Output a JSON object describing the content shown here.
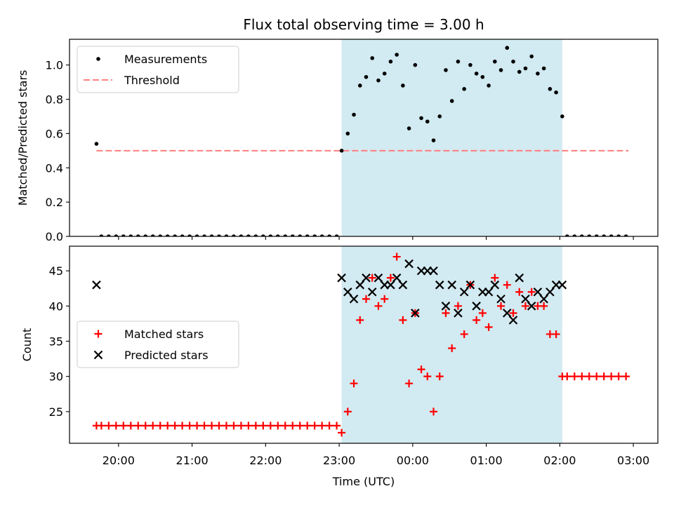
{
  "figure": {
    "title": "Flux total observing time = 3.00 h",
    "xlabel": "Time (UTC)"
  },
  "colors": {
    "span": "#add8e6",
    "threshold": "#ff7f7f",
    "matched": "#ff0000",
    "predicted": "#000000"
  },
  "chart_data": [
    {
      "type": "scatter",
      "ylabel": "Matched/Predicted stars",
      "ylim": [
        0,
        1.15
      ],
      "yticks": [
        0.0,
        0.2,
        0.4,
        0.6,
        0.8,
        1.0
      ],
      "ytick_labels": [
        "0.0",
        "0.2",
        "0.4",
        "0.6",
        "0.8",
        "1.0"
      ],
      "xticks": [
        "20:00",
        "21:00",
        "22:00",
        "23:00",
        "00:00",
        "01:00",
        "02:00",
        "03:00"
      ],
      "xtick_labels_visible": false,
      "legend": {
        "placement": "upper-left",
        "entries": [
          {
            "label": "Measurements",
            "marker": "dot"
          },
          {
            "label": "Threshold",
            "marker": "dashed-line"
          }
        ]
      },
      "shaded_span": {
        "start": "23:02",
        "end": "02:02"
      },
      "threshold": {
        "value": 0.5,
        "start": "19:42",
        "end": "02:56"
      },
      "series": [
        {
          "name": "Measurements",
          "points": [
            [
              "19:42",
              0.54
            ],
            [
              "19:46",
              0.0
            ],
            [
              "19:52",
              0.0
            ],
            [
              "19:58",
              0.0
            ],
            [
              "20:04",
              0.0
            ],
            [
              "20:10",
              0.0
            ],
            [
              "20:16",
              0.0
            ],
            [
              "20:22",
              0.0
            ],
            [
              "20:28",
              0.0
            ],
            [
              "20:34",
              0.0
            ],
            [
              "20:40",
              0.0
            ],
            [
              "20:46",
              0.0
            ],
            [
              "20:52",
              0.0
            ],
            [
              "20:58",
              0.0
            ],
            [
              "21:04",
              0.0
            ],
            [
              "21:10",
              0.0
            ],
            [
              "21:16",
              0.0
            ],
            [
              "21:22",
              0.0
            ],
            [
              "21:28",
              0.0
            ],
            [
              "21:34",
              0.0
            ],
            [
              "21:40",
              0.0
            ],
            [
              "21:46",
              0.0
            ],
            [
              "21:52",
              0.0
            ],
            [
              "21:58",
              0.0
            ],
            [
              "22:04",
              0.0
            ],
            [
              "22:10",
              0.0
            ],
            [
              "22:16",
              0.0
            ],
            [
              "22:22",
              0.0
            ],
            [
              "22:28",
              0.0
            ],
            [
              "22:34",
              0.0
            ],
            [
              "22:40",
              0.0
            ],
            [
              "22:46",
              0.0
            ],
            [
              "22:52",
              0.0
            ],
            [
              "22:58",
              0.0
            ],
            [
              "23:02",
              0.5
            ],
            [
              "23:07",
              0.6
            ],
            [
              "23:12",
              0.71
            ],
            [
              "23:17",
              0.88
            ],
            [
              "23:22",
              0.93
            ],
            [
              "23:27",
              1.04
            ],
            [
              "23:32",
              0.91
            ],
            [
              "23:37",
              0.95
            ],
            [
              "23:42",
              1.02
            ],
            [
              "23:47",
              1.06
            ],
            [
              "23:52",
              0.88
            ],
            [
              "23:57",
              0.63
            ],
            [
              "00:02",
              1.0
            ],
            [
              "00:07",
              0.69
            ],
            [
              "00:12",
              0.67
            ],
            [
              "00:17",
              0.56
            ],
            [
              "00:22",
              0.7
            ],
            [
              "00:27",
              0.97
            ],
            [
              "00:32",
              0.79
            ],
            [
              "00:37",
              1.02
            ],
            [
              "00:42",
              0.86
            ],
            [
              "00:47",
              1.0
            ],
            [
              "00:52",
              0.95
            ],
            [
              "00:57",
              0.93
            ],
            [
              "01:02",
              0.88
            ],
            [
              "01:07",
              1.02
            ],
            [
              "01:12",
              0.97
            ],
            [
              "01:17",
              1.1
            ],
            [
              "01:22",
              1.02
            ],
            [
              "01:27",
              0.96
            ],
            [
              "01:32",
              0.98
            ],
            [
              "01:37",
              1.05
            ],
            [
              "01:42",
              0.95
            ],
            [
              "01:47",
              0.98
            ],
            [
              "01:52",
              0.86
            ],
            [
              "01:57",
              0.84
            ],
            [
              "02:02",
              0.7
            ],
            [
              "02:06",
              0.0
            ],
            [
              "02:12",
              0.0
            ],
            [
              "02:18",
              0.0
            ],
            [
              "02:24",
              0.0
            ],
            [
              "02:30",
              0.0
            ],
            [
              "02:36",
              0.0
            ],
            [
              "02:42",
              0.0
            ],
            [
              "02:48",
              0.0
            ],
            [
              "02:54",
              0.0
            ]
          ]
        }
      ]
    },
    {
      "type": "scatter",
      "ylabel": "Count",
      "ylim": [
        20.5,
        48.5
      ],
      "yticks": [
        25,
        30,
        35,
        40,
        45
      ],
      "ytick_labels": [
        "25",
        "30",
        "35",
        "40",
        "45"
      ],
      "xticks": [
        "20:00",
        "21:00",
        "22:00",
        "23:00",
        "00:00",
        "01:00",
        "02:00",
        "03:00"
      ],
      "xtick_labels": [
        "20:00",
        "21:00",
        "22:00",
        "23:00",
        "00:00",
        "01:00",
        "02:00",
        "03:00"
      ],
      "legend": {
        "placement": "center-left",
        "entries": [
          {
            "label": "Matched stars",
            "marker": "plus"
          },
          {
            "label": "Predicted stars",
            "marker": "x"
          }
        ]
      },
      "shaded_span": {
        "start": "23:02",
        "end": "02:02"
      },
      "series": [
        {
          "name": "Matched stars",
          "points": [
            [
              "19:42",
              23
            ],
            [
              "19:46",
              23
            ],
            [
              "19:52",
              23
            ],
            [
              "19:58",
              23
            ],
            [
              "20:04",
              23
            ],
            [
              "20:10",
              23
            ],
            [
              "20:16",
              23
            ],
            [
              "20:22",
              23
            ],
            [
              "20:28",
              23
            ],
            [
              "20:34",
              23
            ],
            [
              "20:40",
              23
            ],
            [
              "20:46",
              23
            ],
            [
              "20:52",
              23
            ],
            [
              "20:58",
              23
            ],
            [
              "21:04",
              23
            ],
            [
              "21:10",
              23
            ],
            [
              "21:16",
              23
            ],
            [
              "21:22",
              23
            ],
            [
              "21:28",
              23
            ],
            [
              "21:34",
              23
            ],
            [
              "21:40",
              23
            ],
            [
              "21:46",
              23
            ],
            [
              "21:52",
              23
            ],
            [
              "21:58",
              23
            ],
            [
              "22:04",
              23
            ],
            [
              "22:10",
              23
            ],
            [
              "22:16",
              23
            ],
            [
              "22:22",
              23
            ],
            [
              "22:28",
              23
            ],
            [
              "22:34",
              23
            ],
            [
              "22:40",
              23
            ],
            [
              "22:46",
              23
            ],
            [
              "22:52",
              23
            ],
            [
              "22:58",
              23
            ],
            [
              "23:02",
              22
            ],
            [
              "23:07",
              25
            ],
            [
              "23:12",
              29
            ],
            [
              "23:17",
              38
            ],
            [
              "23:22",
              41
            ],
            [
              "23:27",
              44
            ],
            [
              "23:32",
              40
            ],
            [
              "23:37",
              41
            ],
            [
              "23:42",
              44
            ],
            [
              "23:47",
              47
            ],
            [
              "23:52",
              38
            ],
            [
              "23:57",
              29
            ],
            [
              "00:02",
              39
            ],
            [
              "00:07",
              31
            ],
            [
              "00:12",
              30
            ],
            [
              "00:17",
              25
            ],
            [
              "00:22",
              30
            ],
            [
              "00:27",
              39
            ],
            [
              "00:32",
              34
            ],
            [
              "00:37",
              40
            ],
            [
              "00:42",
              36
            ],
            [
              "00:47",
              43
            ],
            [
              "00:52",
              38
            ],
            [
              "00:57",
              39
            ],
            [
              "01:02",
              37
            ],
            [
              "01:07",
              44
            ],
            [
              "01:12",
              40
            ],
            [
              "01:17",
              43
            ],
            [
              "01:22",
              39
            ],
            [
              "01:27",
              42
            ],
            [
              "01:32",
              40
            ],
            [
              "01:37",
              42
            ],
            [
              "01:42",
              40
            ],
            [
              "01:47",
              40
            ],
            [
              "01:52",
              36
            ],
            [
              "01:57",
              36
            ],
            [
              "02:02",
              30
            ],
            [
              "02:06",
              30
            ],
            [
              "02:12",
              30
            ],
            [
              "02:18",
              30
            ],
            [
              "02:24",
              30
            ],
            [
              "02:30",
              30
            ],
            [
              "02:36",
              30
            ],
            [
              "02:42",
              30
            ],
            [
              "02:48",
              30
            ],
            [
              "02:54",
              30
            ]
          ]
        },
        {
          "name": "Predicted stars",
          "points": [
            [
              "19:42",
              43
            ],
            [
              "23:02",
              44
            ],
            [
              "23:07",
              42
            ],
            [
              "23:12",
              41
            ],
            [
              "23:17",
              43
            ],
            [
              "23:22",
              44
            ],
            [
              "23:27",
              42
            ],
            [
              "23:32",
              44
            ],
            [
              "23:37",
              43
            ],
            [
              "23:42",
              43
            ],
            [
              "23:47",
              44
            ],
            [
              "23:52",
              43
            ],
            [
              "23:57",
              46
            ],
            [
              "00:02",
              39
            ],
            [
              "00:07",
              45
            ],
            [
              "00:12",
              45
            ],
            [
              "00:17",
              45
            ],
            [
              "00:22",
              43
            ],
            [
              "00:27",
              40
            ],
            [
              "00:32",
              43
            ],
            [
              "00:37",
              39
            ],
            [
              "00:42",
              42
            ],
            [
              "00:47",
              43
            ],
            [
              "00:52",
              40
            ],
            [
              "00:57",
              42
            ],
            [
              "01:02",
              42
            ],
            [
              "01:07",
              43
            ],
            [
              "01:12",
              41
            ],
            [
              "01:17",
              39
            ],
            [
              "01:22",
              38
            ],
            [
              "01:27",
              44
            ],
            [
              "01:32",
              41
            ],
            [
              "01:37",
              40
            ],
            [
              "01:42",
              42
            ],
            [
              "01:47",
              41
            ],
            [
              "01:52",
              42
            ],
            [
              "01:57",
              43
            ],
            [
              "02:02",
              43
            ]
          ]
        }
      ]
    }
  ]
}
